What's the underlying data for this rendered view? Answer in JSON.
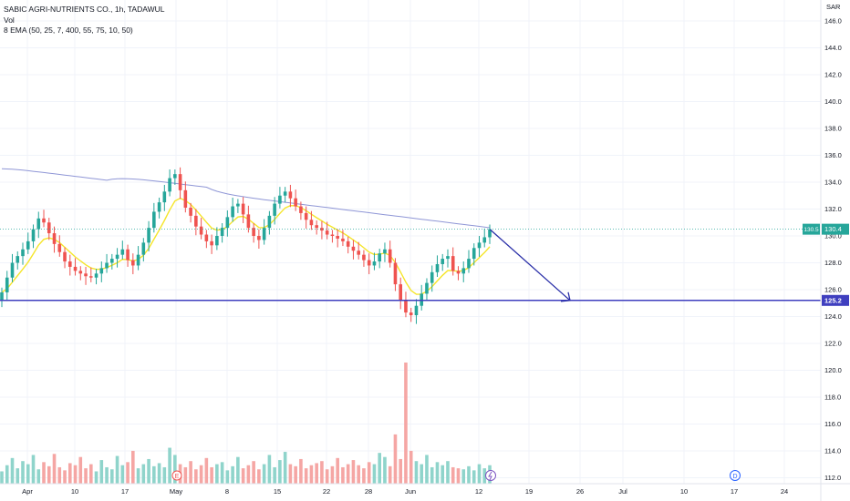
{
  "legend": {
    "title": "SABIC AGRI-NUTRIENTS CO., 1h, TADAWUL",
    "volume": "Vol",
    "ema": "8 EMA (50, 25, 7, 400, 55, 75, 10, 50)"
  },
  "colors": {
    "up": "#26a69a",
    "down": "#ef5350",
    "ema_fast": "#f5e52a",
    "ema_slow": "#8f96d6",
    "line": "#2a2fa8",
    "support": "#3f3fbf",
    "price_badge": "#26a69a"
  },
  "chart_data": {
    "type": "candlestick",
    "currency": "SAR",
    "y_ticks": [
      "146.0",
      "144.0",
      "142.0",
      "140.0",
      "138.0",
      "136.0",
      "134.0",
      "132.0",
      "130.0",
      "128.0",
      "126.0",
      "124.0",
      "122.0",
      "120.0",
      "118.0",
      "116.0",
      "114.0",
      "112.0"
    ],
    "y_range": [
      111.8,
      147.3
    ],
    "x_ticks": [
      "Apr",
      "10",
      "17",
      "May",
      "8",
      "15",
      "22",
      "28",
      "Jun",
      "12",
      "19",
      "26",
      "Jul",
      "10",
      "17",
      "24"
    ],
    "last_price_labels": [
      "130.5",
      "130.4"
    ],
    "support_level": "125.2",
    "support_price": 125.2,
    "closes": [
      125.8,
      126.9,
      128.0,
      128.5,
      129.0,
      129.6,
      130.5,
      131.3,
      131.0,
      130.2,
      129.4,
      128.8,
      128.1,
      127.7,
      127.4,
      127.2,
      127.0,
      126.9,
      127.2,
      127.6,
      128.0,
      128.3,
      128.6,
      129.0,
      128.2,
      127.8,
      128.6,
      129.5,
      130.6,
      131.8,
      132.5,
      133.3,
      134.3,
      134.6,
      133.4,
      132.1,
      131.5,
      130.7,
      130.1,
      129.6,
      129.3,
      130.0,
      130.6,
      131.4,
      132.2,
      132.4,
      131.6,
      130.6,
      130.0,
      129.7,
      130.6,
      131.5,
      132.4,
      133.0,
      133.3,
      132.8,
      132.2,
      131.7,
      131.2,
      130.8,
      130.6,
      130.4,
      130.1,
      130.0,
      129.8,
      129.6,
      129.2,
      128.9,
      128.6,
      128.2,
      127.8,
      128.1,
      128.7,
      129.0,
      128.0,
      126.4,
      125.2,
      124.3,
      124.1,
      124.8,
      125.7,
      126.5,
      127.3,
      127.9,
      128.3,
      128.5,
      127.4,
      127.2,
      127.6,
      128.3,
      129.1,
      129.5,
      129.9,
      130.5
    ],
    "volumes": [
      1.2,
      1.8,
      2.5,
      1.5,
      2.2,
      1.9,
      2.8,
      1.4,
      2.1,
      1.7,
      2.9,
      1.6,
      1.3,
      2.0,
      1.8,
      2.6,
      1.5,
      1.9,
      1.2,
      2.3,
      1.6,
      1.4,
      2.7,
      1.8,
      2.1,
      3.2,
      1.5,
      1.9,
      2.4,
      1.7,
      2.0,
      1.6,
      3.5,
      2.8,
      1.9,
      1.6,
      2.2,
      1.4,
      1.8,
      2.5,
      1.6,
      1.9,
      2.1,
      1.3,
      1.7,
      2.6,
      1.5,
      1.8,
      2.2,
      1.4,
      1.9,
      2.8,
      1.6,
      2.3,
      3.1,
      1.9,
      1.7,
      2.4,
      1.5,
      1.8,
      2.0,
      2.2,
      1.4,
      1.7,
      2.5,
      1.6,
      1.9,
      2.3,
      1.8,
      1.5,
      2.1,
      1.9,
      3.0,
      2.6,
      1.7,
      4.8,
      2.4,
      11.8,
      3.2,
      2.2,
      1.9,
      2.8,
      1.6,
      2.1,
      1.8,
      2.2,
      1.6,
      1.5,
      1.4,
      1.7,
      1.3,
      1.9,
      1.5,
      1.8
    ],
    "volume_tall_candles": [
      19,
      77
    ],
    "forecast_line": {
      "from_price": 130.5,
      "to_price": 125.2
    },
    "x_range_days": [
      0,
      90
    ]
  }
}
